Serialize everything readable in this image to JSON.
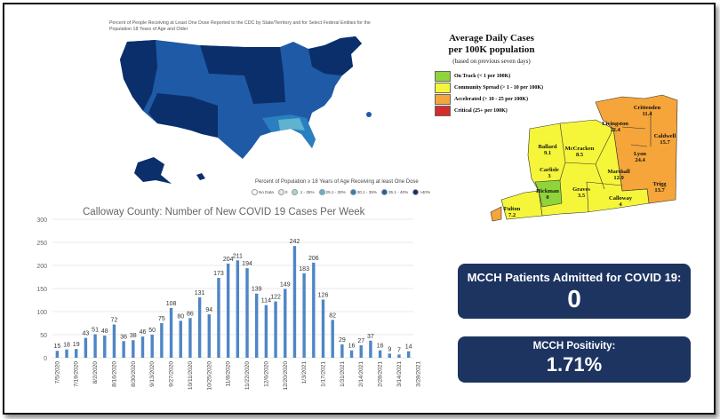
{
  "us_map": {
    "title": "Percent of People Receiving at Least One Dose Reported to the CDC by State/Territory and for Select Federal Entities for the Population 18 Years of Age and Older",
    "legend_title": "Percent of Population ≥ 18 Years of Age Receiving at least One Dose",
    "legend": [
      {
        "label": "No Data",
        "color": "#ffffff"
      },
      {
        "label": "0",
        "color": "#d8efe8"
      },
      {
        "label": ".1 - 25%",
        "color": "#9fd8d3"
      },
      {
        "label": "25.1 - 30%",
        "color": "#5fb3cf"
      },
      {
        "label": "30.1 - 35%",
        "color": "#2a7fc0"
      },
      {
        "label": "35.1 - 40%",
        "color": "#1f5aa6"
      },
      {
        "label": ">40%",
        "color": "#0b2f6b"
      }
    ]
  },
  "ky_map": {
    "title_line1": "Average Daily Cases",
    "title_line2": "per 100K population",
    "subtitle": "(based on previous seven days)",
    "legend": [
      {
        "label": "On Track (< 1 per 100K)",
        "color": "#8fd43a"
      },
      {
        "label": "Community Spread (> 1 - 10 per 100K)",
        "color": "#f5f53a"
      },
      {
        "label": "Accelerated (> 10 - 25 per 100K)",
        "color": "#f5a53a"
      },
      {
        "label": "Critical (25+ per 100K)",
        "color": "#d62b2b"
      }
    ],
    "counties": [
      {
        "name": "Crittenden",
        "value": "11.4"
      },
      {
        "name": "Livingston",
        "value": "12.4"
      },
      {
        "name": "Caldwell",
        "value": "15.7"
      },
      {
        "name": "Ballard",
        "value": "9.1"
      },
      {
        "name": "McCracken",
        "value": "8.5"
      },
      {
        "name": "Lyon",
        "value": "24.4"
      },
      {
        "name": "Carlisle",
        "value": "3"
      },
      {
        "name": "Marshall",
        "value": "12.9"
      },
      {
        "name": "Trigg",
        "value": "13.7"
      },
      {
        "name": "Hickman",
        "value": "0"
      },
      {
        "name": "Graves",
        "value": "3.5"
      },
      {
        "name": "Calloway",
        "value": "4"
      },
      {
        "name": "Fulton",
        "value": "7.2"
      }
    ]
  },
  "chart_data": {
    "type": "bar",
    "title": "Calloway County: Number of New COVID 19 Cases Per Week",
    "xlabel": "",
    "ylabel": "",
    "ylim": [
      0,
      300
    ],
    "yticks": [
      0,
      50,
      100,
      150,
      200,
      250,
      300
    ],
    "bar_color": "#4f86c6",
    "grid": true,
    "x_tick_labels": [
      "7/5/2020",
      "7/19/2020",
      "8/2/2020",
      "8/16/2020",
      "8/30/2020",
      "9/13/2020",
      "9/27/2020",
      "10/11/2020",
      "10/25/2020",
      "11/8/2020",
      "11/22/2020",
      "12/6/2020",
      "12/20/2020",
      "1/3/2021",
      "1/17/2021",
      "1/31/2021",
      "2/14/2021",
      "2/28/2021",
      "3/14/2021",
      "3/28/2021"
    ],
    "values": [
      15,
      18,
      19,
      43,
      51,
      48,
      72,
      36,
      38,
      46,
      50,
      75,
      108,
      80,
      86,
      131,
      94,
      173,
      204,
      211,
      194,
      139,
      114,
      122,
      149,
      242,
      183,
      206,
      126,
      82,
      29,
      16,
      27,
      37,
      16,
      9,
      7,
      14
    ]
  },
  "stats": {
    "admitted_label": "MCCH Patients Admitted for COVID 19:",
    "admitted_value": "0",
    "positivity_label": "MCCH Positivity:",
    "positivity_value": "1.71%"
  }
}
